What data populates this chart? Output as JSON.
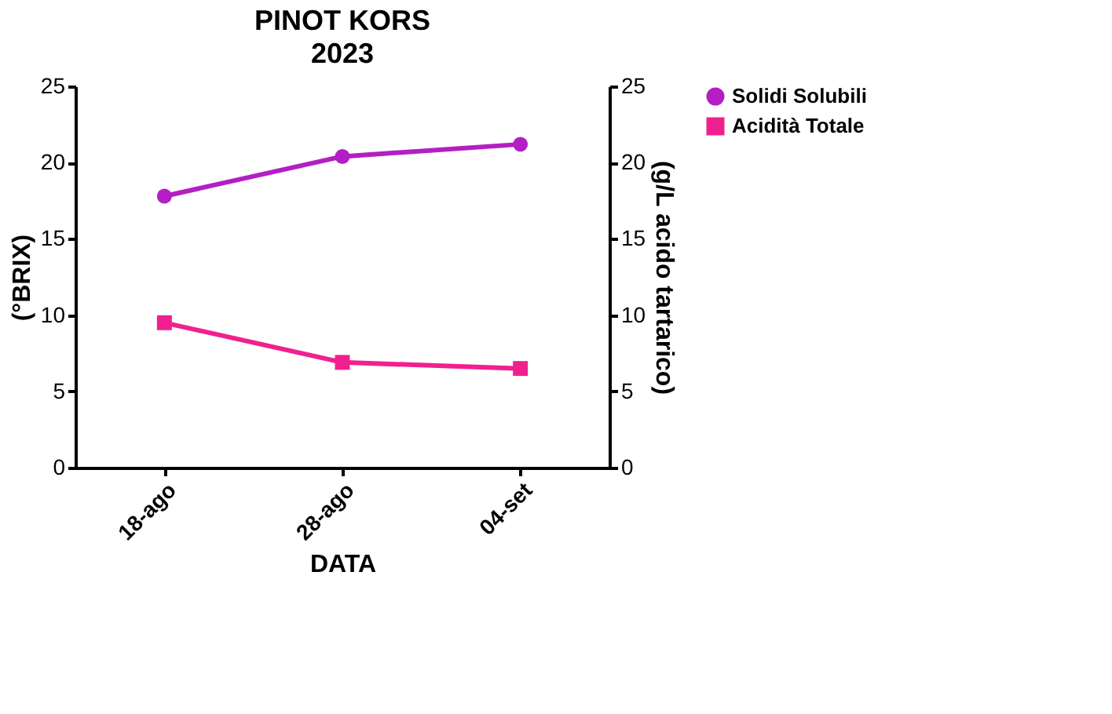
{
  "chart_data": {
    "type": "line",
    "title": "PINOT KORS",
    "subtitle": "2023",
    "xlabel": "DATA",
    "ylabel": "(°BRIX)",
    "y2label": "(g/L acido tartarico)",
    "categories": [
      "18-ago",
      "28-ago",
      "04-set"
    ],
    "series": [
      {
        "name": "Solidi Solubili",
        "color": "#b31fc4",
        "values": [
          17.8,
          20.4,
          21.2
        ],
        "marker": "circle"
      },
      {
        "name": "Acidità Totale",
        "color": "#f0218f",
        "values": [
          9.5,
          6.9,
          6.5
        ],
        "marker": "square",
        "axis": "y2"
      }
    ],
    "ylim": [
      0,
      25
    ],
    "yticks": [
      0,
      5,
      10,
      15,
      20,
      25
    ],
    "y2lim": [
      0,
      25
    ],
    "y2ticks": [
      0,
      5,
      10,
      15,
      20,
      25
    ],
    "grid": false,
    "legend": "right",
    "line_style": "solid"
  }
}
